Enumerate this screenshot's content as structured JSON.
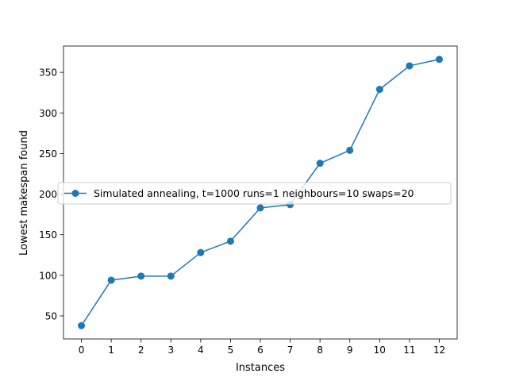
{
  "chart_data": {
    "type": "line",
    "title": "",
    "xlabel": "Instances",
    "ylabel": "Lowest makespan found",
    "x": [
      0,
      1,
      2,
      3,
      4,
      5,
      6,
      7,
      8,
      9,
      10,
      11,
      12
    ],
    "x_ticks": [
      "0",
      "1",
      "2",
      "3",
      "4",
      "5",
      "6",
      "7",
      "8",
      "9",
      "10",
      "11",
      "12"
    ],
    "y_ticks": [
      "50",
      "100",
      "150",
      "200",
      "250",
      "300",
      "350"
    ],
    "xlim": [
      -0.6,
      12.6
    ],
    "ylim": [
      21.6,
      382.4
    ],
    "grid": false,
    "legend_position": "center-left",
    "series": [
      {
        "name": "Simulated annealing, t=1000 runs=1 neighbours=10 swaps=20",
        "color": "#1f77b4",
        "marker": "circle",
        "values": [
          38,
          94,
          99,
          99,
          128,
          142,
          183,
          187,
          238,
          254,
          329,
          358,
          366
        ]
      }
    ]
  }
}
